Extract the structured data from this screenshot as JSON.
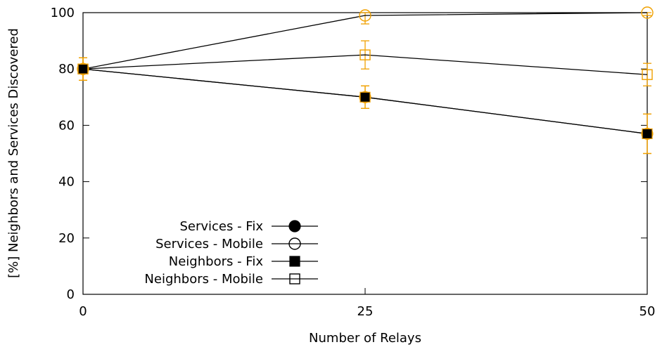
{
  "chart_data": {
    "type": "line",
    "xlabel": "Number of Relays",
    "ylabel": "[%] Neighbors and Services Discovered",
    "x": [
      0,
      25,
      50
    ],
    "xlim": [
      0,
      50
    ],
    "ylim": [
      0,
      100
    ],
    "xticks": [
      0,
      25,
      50
    ],
    "yticks": [
      0,
      20,
      40,
      60,
      80,
      100
    ],
    "grid": false,
    "legend_position": "bottom-left",
    "error_bar_color": "#f0a000",
    "series": [
      {
        "name": "Services - Fix",
        "marker": "filled-circle",
        "values": [
          80,
          70,
          57
        ],
        "errors": [
          4,
          4,
          7
        ]
      },
      {
        "name": "Services - Mobile",
        "marker": "open-circle",
        "values": [
          80,
          99,
          100
        ],
        "errors": [
          4,
          3,
          1
        ]
      },
      {
        "name": "Neighbors - Fix",
        "marker": "filled-square",
        "values": [
          80,
          70,
          57
        ],
        "errors": [
          4,
          4,
          7
        ]
      },
      {
        "name": "Neighbors - Mobile",
        "marker": "open-square",
        "values": [
          80,
          85,
          78
        ],
        "errors": [
          4,
          5,
          4
        ]
      }
    ]
  }
}
